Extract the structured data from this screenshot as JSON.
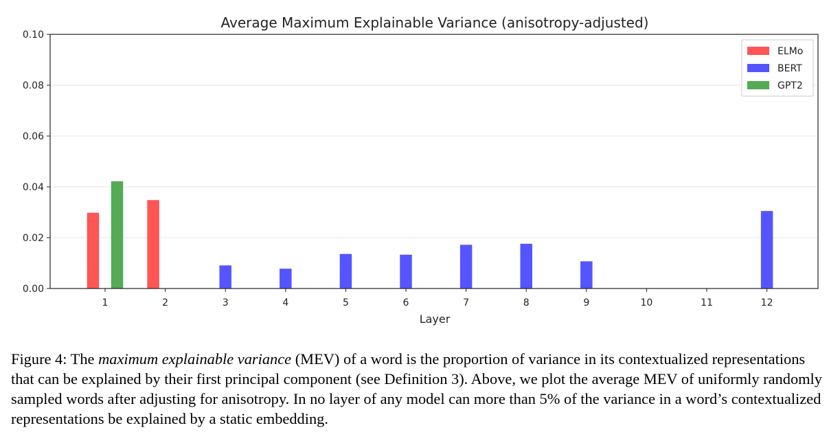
{
  "chart_data": {
    "type": "bar",
    "title": "Average Maximum Explainable Variance (anisotropy-adjusted)",
    "xlabel": "Layer",
    "ylabel": "",
    "categories": [
      "1",
      "2",
      "3",
      "4",
      "5",
      "6",
      "7",
      "8",
      "9",
      "10",
      "11",
      "12"
    ],
    "ylim": [
      0,
      0.1
    ],
    "yticks": [
      "0.00",
      "0.02",
      "0.04",
      "0.06",
      "0.08",
      "0.10"
    ],
    "grid": "horizontal",
    "legend_position": "top-right",
    "series": [
      {
        "name": "ELMo",
        "color": "#ff5555",
        "values": [
          0.0298,
          0.0348,
          null,
          null,
          null,
          null,
          null,
          null,
          null,
          null,
          null,
          null
        ]
      },
      {
        "name": "BERT",
        "color": "#5555ff",
        "values": [
          null,
          null,
          0.0091,
          0.0078,
          0.0136,
          0.0133,
          0.0172,
          0.0176,
          0.0107,
          null,
          null,
          0.0305
        ]
      },
      {
        "name": "GPT2",
        "color": "#55aa55",
        "values": [
          0.0422,
          null,
          null,
          null,
          null,
          null,
          null,
          null,
          null,
          null,
          null,
          null
        ]
      }
    ]
  },
  "caption": {
    "label": "Figure 4: The ",
    "term": "maximum explainable variance",
    "rest": " (MEV) of a word is the proportion of variance in its contextualized representations that can be explained by their first principal component (see Definition 3). Above, we plot the average MEV of uniformly randomly sampled words after adjusting for anisotropy. In no layer of any model can more than 5% of the variance in a word’s contextualized representations be explained by a static embedding."
  }
}
